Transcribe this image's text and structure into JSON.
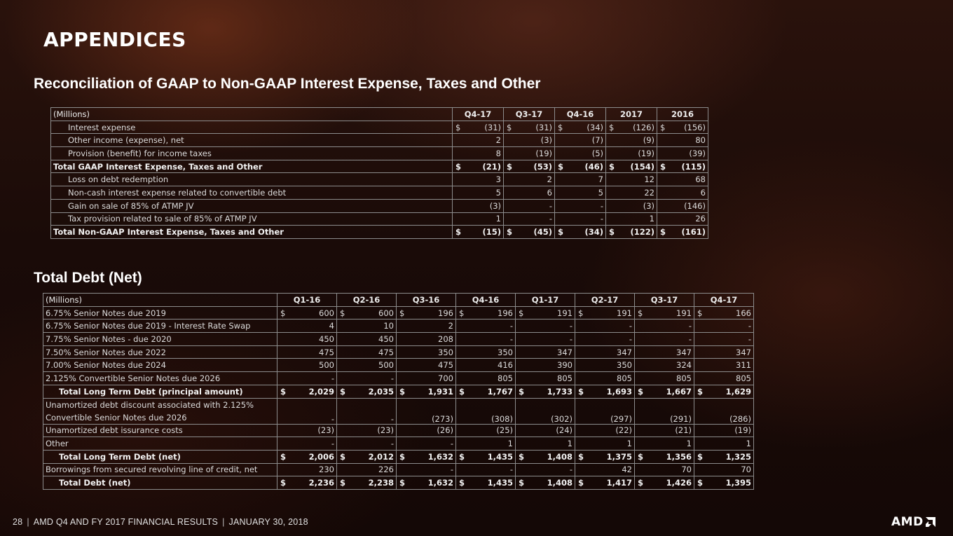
{
  "page": {
    "title": "APPENDICES",
    "section1_title": "Reconciliation of GAAP to Non-GAAP Interest Expense, Taxes and Other",
    "section2_title": "Total Debt (Net)"
  },
  "table1": {
    "header": [
      "(Millions)",
      "Q4-17",
      "Q3-17",
      "Q4-16",
      "2017",
      "2016"
    ],
    "rows": [
      {
        "label": "Interest expense",
        "style": "indent",
        "cells": [
          [
            "$",
            "(31)"
          ],
          [
            "$",
            "(31)"
          ],
          [
            "$",
            "(34)"
          ],
          [
            "$",
            "(126)"
          ],
          [
            "$",
            "(156)"
          ]
        ]
      },
      {
        "label": "Other income (expense), net",
        "style": "indent",
        "cells": [
          [
            "",
            "2"
          ],
          [
            "",
            "(3)"
          ],
          [
            "",
            "(7)"
          ],
          [
            "",
            "(9)"
          ],
          [
            "",
            "80"
          ]
        ]
      },
      {
        "label": "Provision (benefit) for income taxes",
        "style": "indent",
        "cells": [
          [
            "",
            "8"
          ],
          [
            "",
            "(19)"
          ],
          [
            "",
            "(5)"
          ],
          [
            "",
            "(19)"
          ],
          [
            "",
            "(39)"
          ]
        ]
      },
      {
        "label": "Total GAAP Interest Expense, Taxes and Other",
        "style": "bold",
        "cells": [
          [
            "$",
            "(21)"
          ],
          [
            "$",
            "(53)"
          ],
          [
            "$",
            "(46)"
          ],
          [
            "$",
            "(154)"
          ],
          [
            "$",
            "(115)"
          ]
        ]
      },
      {
        "label": "Loss on debt redemption",
        "style": "indent",
        "cells": [
          [
            "",
            "3"
          ],
          [
            "",
            "2"
          ],
          [
            "",
            "7"
          ],
          [
            "",
            "12"
          ],
          [
            "",
            "68"
          ]
        ]
      },
      {
        "label": "Non-cash interest expense related to convertible debt",
        "style": "indent",
        "cells": [
          [
            "",
            "5"
          ],
          [
            "",
            "6"
          ],
          [
            "",
            "5"
          ],
          [
            "",
            "22"
          ],
          [
            "",
            "6"
          ]
        ]
      },
      {
        "label": "Gain on sale of 85% of ATMP JV",
        "style": "indent",
        "cells": [
          [
            "",
            "(3)"
          ],
          [
            "",
            "-"
          ],
          [
            "",
            "-"
          ],
          [
            "",
            "(3)"
          ],
          [
            "",
            "(146)"
          ]
        ]
      },
      {
        "label": "Tax provision related to sale of 85% of ATMP JV",
        "style": "indent",
        "cells": [
          [
            "",
            "1"
          ],
          [
            "",
            "-"
          ],
          [
            "",
            "-"
          ],
          [
            "",
            "1"
          ],
          [
            "",
            "26"
          ]
        ]
      },
      {
        "label": "Total Non-GAAP Interest Expense, Taxes and Other",
        "style": "bold",
        "cells": [
          [
            "$",
            "(15)"
          ],
          [
            "$",
            "(45)"
          ],
          [
            "$",
            "(34)"
          ],
          [
            "$",
            "(122)"
          ],
          [
            "$",
            "(161)"
          ]
        ]
      }
    ]
  },
  "table2": {
    "header": [
      "(Millions)",
      "Q1-16",
      "Q2-16",
      "Q3-16",
      "Q4-16",
      "Q1-17",
      "Q2-17",
      "Q3-17",
      "Q4-17"
    ],
    "rows": [
      {
        "label": "6.75% Senior Notes due 2019",
        "style": "plain",
        "cells": [
          [
            "$",
            "600"
          ],
          [
            "$",
            "600"
          ],
          [
            "$",
            "196"
          ],
          [
            "$",
            "196"
          ],
          [
            "$",
            "191"
          ],
          [
            "$",
            "191"
          ],
          [
            "$",
            "191"
          ],
          [
            "$",
            "166"
          ]
        ]
      },
      {
        "label": "6.75% Senior Notes due 2019 - Interest Rate Swap",
        "style": "plain",
        "cells": [
          [
            "",
            "4"
          ],
          [
            "",
            "10"
          ],
          [
            "",
            "2"
          ],
          [
            "",
            "-"
          ],
          [
            "",
            "-"
          ],
          [
            "",
            "-"
          ],
          [
            "",
            "-"
          ],
          [
            "",
            "-"
          ]
        ]
      },
      {
        "label": "7.75% Senior Notes - due 2020",
        "style": "plain",
        "cells": [
          [
            "",
            "450"
          ],
          [
            "",
            "450"
          ],
          [
            "",
            "208"
          ],
          [
            "",
            "-"
          ],
          [
            "",
            "-"
          ],
          [
            "",
            "-"
          ],
          [
            "",
            "-"
          ],
          [
            "",
            "-"
          ]
        ]
      },
      {
        "label": "7.50% Senior Notes due 2022",
        "style": "plain",
        "cells": [
          [
            "",
            "475"
          ],
          [
            "",
            "475"
          ],
          [
            "",
            "350"
          ],
          [
            "",
            "350"
          ],
          [
            "",
            "347"
          ],
          [
            "",
            "347"
          ],
          [
            "",
            "347"
          ],
          [
            "",
            "347"
          ]
        ]
      },
      {
        "label": "7.00% Senior Notes due 2024",
        "style": "plain",
        "cells": [
          [
            "",
            "500"
          ],
          [
            "",
            "500"
          ],
          [
            "",
            "475"
          ],
          [
            "",
            "416"
          ],
          [
            "",
            "390"
          ],
          [
            "",
            "350"
          ],
          [
            "",
            "324"
          ],
          [
            "",
            "311"
          ]
        ]
      },
      {
        "label": "2.125% Convertible Senior Notes due 2026",
        "style": "plain",
        "cells": [
          [
            "",
            "-"
          ],
          [
            "",
            "-"
          ],
          [
            "",
            "700"
          ],
          [
            "",
            "805"
          ],
          [
            "",
            "805"
          ],
          [
            "",
            "805"
          ],
          [
            "",
            "805"
          ],
          [
            "",
            "805"
          ]
        ]
      },
      {
        "label": "Total Long Term Debt (principal amount)",
        "style": "total",
        "cells": [
          [
            "$",
            "2,029"
          ],
          [
            "$",
            "2,035"
          ],
          [
            "$",
            "1,931"
          ],
          [
            "$",
            "1,767"
          ],
          [
            "$",
            "1,733"
          ],
          [
            "$",
            "1,693"
          ],
          [
            "$",
            "1,667"
          ],
          [
            "$",
            "1,629"
          ]
        ]
      },
      {
        "label": "Unamortized debt discount associated with 2.125% Convertible Senior Notes due 2026",
        "style": "tall",
        "cells": [
          [
            "",
            "-"
          ],
          [
            "",
            "-"
          ],
          [
            "",
            "(273)"
          ],
          [
            "",
            "(308)"
          ],
          [
            "",
            "(302)"
          ],
          [
            "",
            "(297)"
          ],
          [
            "",
            "(291)"
          ],
          [
            "",
            "(286)"
          ]
        ]
      },
      {
        "label": "Unamortized debt issurance costs",
        "style": "plain",
        "cells": [
          [
            "",
            "(23)"
          ],
          [
            "",
            "(23)"
          ],
          [
            "",
            "(26)"
          ],
          [
            "",
            "(25)"
          ],
          [
            "",
            "(24)"
          ],
          [
            "",
            "(22)"
          ],
          [
            "",
            "(21)"
          ],
          [
            "",
            "(19)"
          ]
        ]
      },
      {
        "label": "Other",
        "style": "plain",
        "cells": [
          [
            "",
            "-"
          ],
          [
            "",
            "-"
          ],
          [
            "",
            "-"
          ],
          [
            "",
            "1"
          ],
          [
            "",
            "1"
          ],
          [
            "",
            "1"
          ],
          [
            "",
            "1"
          ],
          [
            "",
            "1"
          ]
        ]
      },
      {
        "label": "Total Long Term Debt (net)",
        "style": "total",
        "cells": [
          [
            "$",
            "2,006"
          ],
          [
            "$",
            "2,012"
          ],
          [
            "$",
            "1,632"
          ],
          [
            "$",
            "1,435"
          ],
          [
            "$",
            "1,408"
          ],
          [
            "$",
            "1,375"
          ],
          [
            "$",
            "1,356"
          ],
          [
            "$",
            "1,325"
          ]
        ]
      },
      {
        "label": "Borrowings from secured revolving line of credit, net",
        "style": "plain",
        "cells": [
          [
            "",
            "230"
          ],
          [
            "",
            "226"
          ],
          [
            "",
            "-"
          ],
          [
            "",
            "-"
          ],
          [
            "",
            "-"
          ],
          [
            "",
            "42"
          ],
          [
            "",
            "70"
          ],
          [
            "",
            "70"
          ]
        ]
      },
      {
        "label": "Total Debt (net)",
        "style": "total",
        "cells": [
          [
            "$",
            "2,236"
          ],
          [
            "$",
            "2,238"
          ],
          [
            "$",
            "1,632"
          ],
          [
            "$",
            "1,435"
          ],
          [
            "$",
            "1,408"
          ],
          [
            "$",
            "1,417"
          ],
          [
            "$",
            "1,426"
          ],
          [
            "$",
            "1,395"
          ]
        ]
      }
    ]
  },
  "footer": {
    "page_number": "28",
    "text1": "AMD Q4 AND FY 2017 FINANCIAL RESULTS",
    "text2": "JANUARY 30, 2018"
  },
  "logo": {
    "text": "AMD",
    "icon": "amd-arrow-icon"
  }
}
